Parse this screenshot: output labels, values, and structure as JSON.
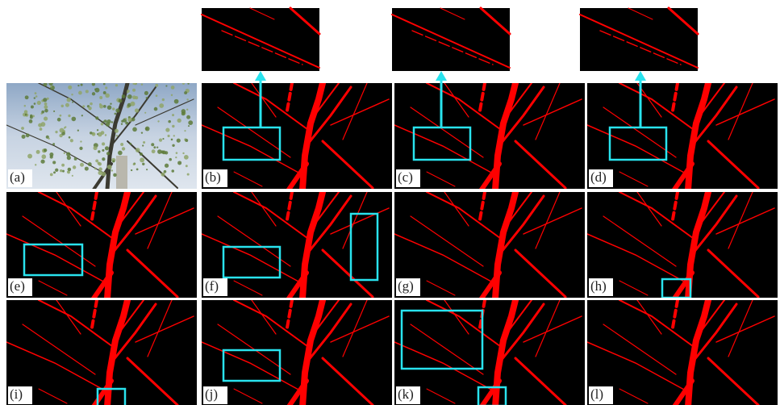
{
  "panels": [
    {
      "label": "(a)"
    },
    {
      "label": "(b)"
    },
    {
      "label": "(c)"
    },
    {
      "label": "(d)"
    },
    {
      "label": "(e)"
    },
    {
      "label": "(f)"
    },
    {
      "label": "(g)"
    },
    {
      "label": "(h)"
    },
    {
      "label": "(i)"
    },
    {
      "label": "(j)"
    },
    {
      "label": "(k)"
    },
    {
      "label": "(l)"
    }
  ]
}
